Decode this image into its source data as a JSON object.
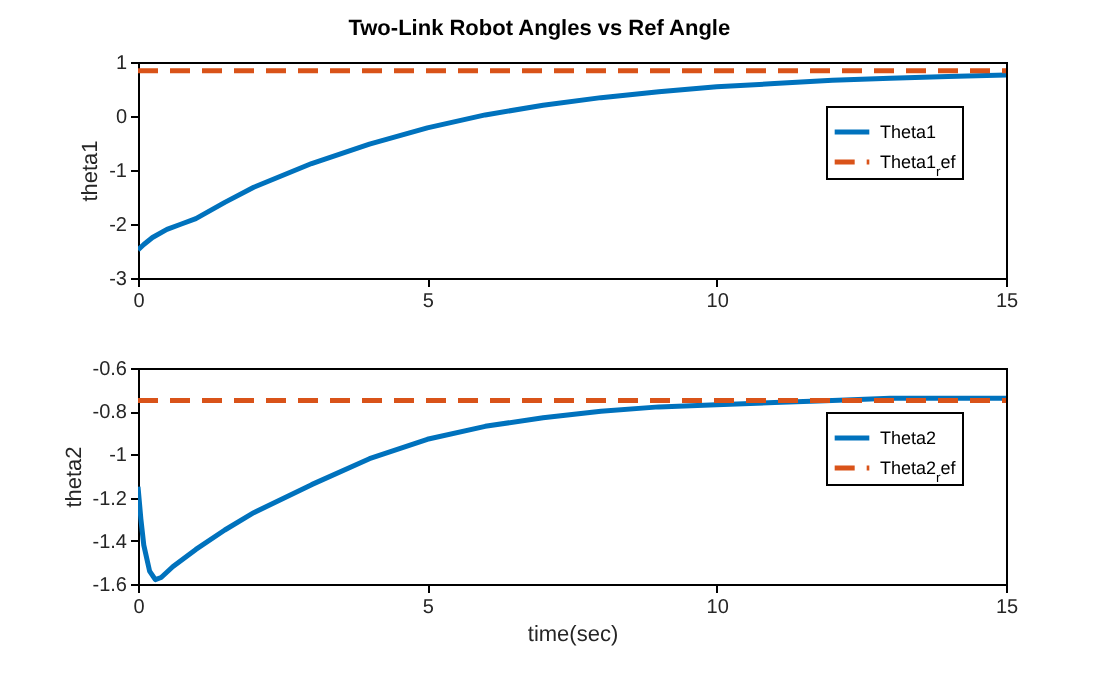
{
  "chart_data": [
    {
      "type": "line",
      "title": "Two-Link Robot Angles vs Ref Angle",
      "ylabel": "theta1",
      "xlim": [
        0,
        15
      ],
      "xticks": [
        0,
        5,
        10,
        15
      ],
      "ylim": [
        -3,
        1
      ],
      "yticks": [
        -3,
        -2,
        -1,
        0,
        1
      ],
      "grid": false,
      "legend": "top right",
      "marker": "none",
      "series": [
        {
          "name": "Theta1",
          "color": "#0072bd",
          "line_style": "solid",
          "x": [
            0,
            0.1,
            0.25,
            0.5,
            0.75,
            1,
            1.5,
            2,
            3,
            4,
            5,
            6,
            7,
            8,
            9,
            10,
            11,
            12,
            13,
            14,
            15
          ],
          "values": [
            -2.48,
            -2.38,
            -2.25,
            -2.1,
            -2.0,
            -1.9,
            -1.6,
            -1.32,
            -0.88,
            -0.52,
            -0.22,
            0.02,
            0.2,
            0.34,
            0.45,
            0.54,
            0.6,
            0.66,
            0.7,
            0.73,
            0.76
          ]
        },
        {
          "name": "Theta1$_{r}$ef",
          "color": "#d95319",
          "line_style": "dashed",
          "x": [
            0,
            15
          ],
          "values": [
            0.84,
            0.84
          ]
        }
      ]
    },
    {
      "type": "line",
      "xlabel": "time(sec)",
      "ylabel": "theta2",
      "xlim": [
        0,
        15
      ],
      "xticks": [
        0,
        5,
        10,
        15
      ],
      "ylim": [
        -1.6,
        -0.6
      ],
      "yticks": [
        -1.6,
        -1.4,
        -1.2,
        -1,
        -0.8,
        -0.6
      ],
      "grid": false,
      "legend": "top right",
      "marker": "none",
      "series": [
        {
          "name": "Theta2",
          "color": "#0072bd",
          "line_style": "solid",
          "x": [
            0,
            0.05,
            0.1,
            0.2,
            0.3,
            0.4,
            0.6,
            1,
            1.5,
            2,
            3,
            4,
            5,
            6,
            7,
            8,
            9,
            10,
            11,
            12,
            13,
            14,
            15
          ],
          "values": [
            -1.15,
            -1.3,
            -1.42,
            -1.54,
            -1.58,
            -1.57,
            -1.52,
            -1.44,
            -1.35,
            -1.27,
            -1.14,
            -1.02,
            -0.93,
            -0.87,
            -0.83,
            -0.8,
            -0.78,
            -0.77,
            -0.76,
            -0.75,
            -0.74,
            -0.74,
            -0.74
          ]
        },
        {
          "name": "Theta2$_{r}$ef",
          "color": "#d95319",
          "line_style": "dashed",
          "x": [
            0,
            15
          ],
          "values": [
            -0.75,
            -0.75
          ]
        }
      ]
    }
  ]
}
